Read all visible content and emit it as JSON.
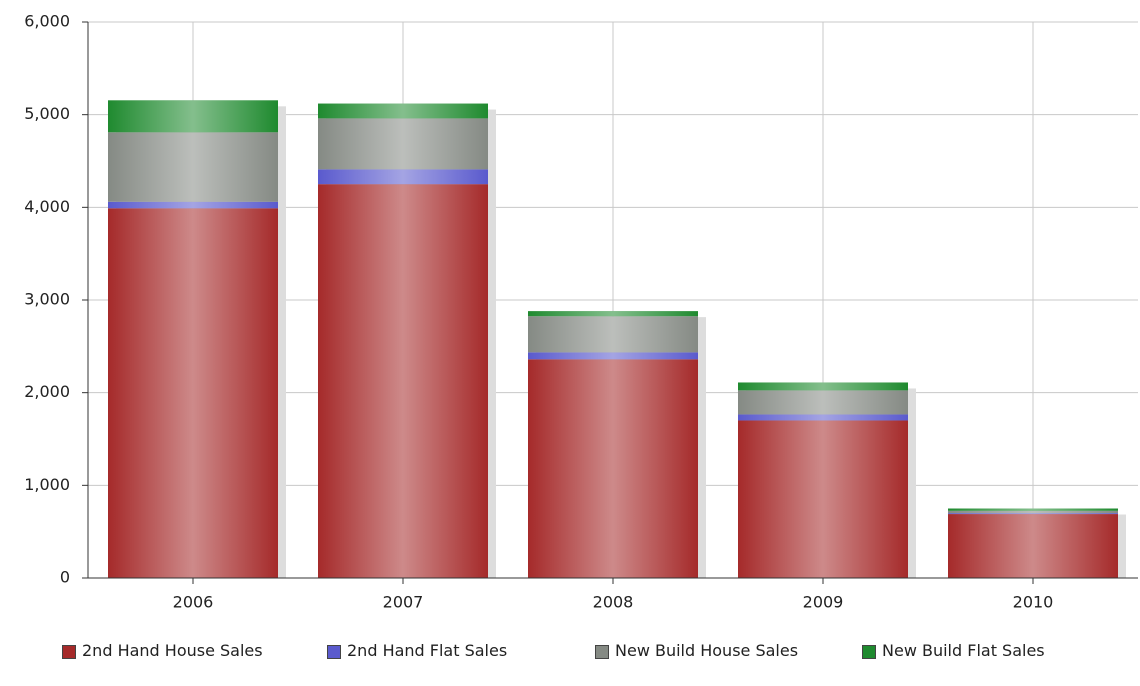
{
  "chart_data": {
    "type": "stacked_bar",
    "categories": [
      "2006",
      "2007",
      "2008",
      "2009",
      "2010"
    ],
    "series": [
      {
        "name": "2nd Hand House Sales",
        "color": "#a52a2a",
        "values": [
          3990,
          4250,
          2360,
          1700,
          690
        ]
      },
      {
        "name": "2nd Hand Flat Sales",
        "color": "#5a5acd",
        "values": [
          70,
          160,
          75,
          65,
          10
        ]
      },
      {
        "name": "New Build House Sales",
        "color": "#858a84",
        "values": [
          750,
          550,
          390,
          260,
          25
        ]
      },
      {
        "name": "New Build Flat Sales",
        "color": "#1f8a2f",
        "values": [
          345,
          160,
          55,
          85,
          25
        ]
      }
    ],
    "ylim": [
      0,
      6000
    ],
    "yticks": [
      0,
      {
        "value": 1000,
        "label": "1,000"
      },
      {
        "value": 2000,
        "label": "2,000"
      },
      {
        "value": 3000,
        "label": "3,000"
      },
      {
        "value": 4000,
        "label": "4,000"
      },
      {
        "value": 5000,
        "label": "5,000"
      },
      {
        "value": 6000,
        "label": "6,000"
      }
    ],
    "grid": true
  }
}
